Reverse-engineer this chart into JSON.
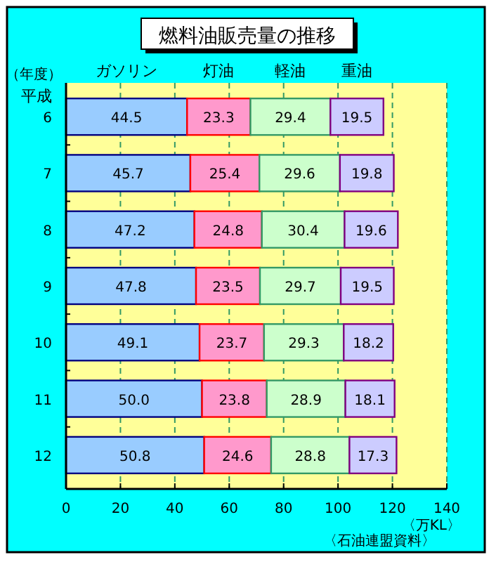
{
  "chart_data": {
    "type": "bar",
    "orientation": "horizontal",
    "stacked": true,
    "title": "燃料油販売量の推移",
    "ylabel": "平成",
    "xlabel": "〈万KL〉",
    "annotations": [
      "（年度）",
      "〈石油連盟資料〉"
    ],
    "categories": [
      "6",
      "7",
      "8",
      "9",
      "10",
      "11",
      "12"
    ],
    "series": [
      {
        "name": "ガソリン",
        "color": "#99ccff",
        "values": [
          44.5,
          45.7,
          47.2,
          47.8,
          49.1,
          50.0,
          50.8
        ],
        "value_labels": [
          "44.5",
          "45.7",
          "47.2",
          "47.8",
          "49.1",
          "50.0",
          "50.8"
        ]
      },
      {
        "name": "灯油",
        "color": "#ff99cc",
        "values": [
          23.3,
          25.4,
          24.8,
          23.5,
          23.7,
          23.8,
          24.6
        ],
        "value_labels": [
          "23.3",
          "25.4",
          "24.8",
          "23.5",
          "23.7",
          "23.8",
          "24.6"
        ]
      },
      {
        "name": "軽油",
        "color": "#ccffcc",
        "values": [
          29.4,
          29.6,
          30.4,
          29.7,
          29.3,
          28.9,
          28.8
        ],
        "value_labels": [
          "29.4",
          "29.6",
          "30.4",
          "29.7",
          "29.3",
          "28.9",
          "28.8"
        ]
      },
      {
        "name": "重油",
        "color": "#ccccff",
        "values": [
          19.5,
          19.8,
          19.6,
          19.5,
          18.2,
          18.1,
          17.3
        ],
        "value_labels": [
          "19.5",
          "19.8",
          "19.6",
          "19.5",
          "18.2",
          "18.1",
          "17.3"
        ]
      }
    ],
    "xlim": [
      0,
      140
    ],
    "xticks": [
      0,
      20,
      40,
      60,
      80,
      100,
      120,
      140
    ],
    "grid": "x",
    "legend": "top"
  }
}
